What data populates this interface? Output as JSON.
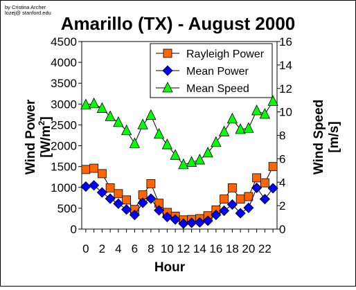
{
  "credit": [
    "by Cristina Archer",
    "lozej@ stanford.edu"
  ],
  "chart_data": {
    "type": "line",
    "title": "Amarillo (TX) - August 2000",
    "xlabel": "Hour",
    "ylabel_left": [
      "Wind Power",
      "[W/m",
      "2",
      "]"
    ],
    "ylabel_right": [
      "Wind Speed",
      "[m/s]"
    ],
    "xlim": [
      -0.5,
      23.5
    ],
    "ylim_left": [
      0,
      4500
    ],
    "ylim_right": [
      0,
      16
    ],
    "x_ticks": [
      "0",
      "2",
      "4",
      "6",
      "8",
      "10",
      "12",
      "14",
      "16",
      "18",
      "20",
      "22"
    ],
    "y_ticks_left": [
      "0",
      "500",
      "1000",
      "1500",
      "2000",
      "2500",
      "3000",
      "3500",
      "4000",
      "4500"
    ],
    "y_ticks_right": [
      "0",
      "2",
      "4",
      "6",
      "8",
      "10",
      "12",
      "14",
      "16"
    ],
    "grid": false,
    "legend_position": "top-right",
    "x": [
      0,
      1,
      2,
      3,
      4,
      5,
      6,
      7,
      8,
      9,
      10,
      11,
      12,
      13,
      14,
      15,
      16,
      17,
      18,
      19,
      20,
      21,
      22,
      23
    ],
    "series": [
      {
        "name": "Rayleigh Power",
        "axis": "left",
        "marker": "square",
        "color": "#ff6600",
        "values": [
          1430,
          1460,
          1330,
          990,
          850,
          700,
          470,
          820,
          1090,
          620,
          400,
          310,
          220,
          230,
          250,
          320,
          460,
          720,
          990,
          720,
          780,
          1230,
          1110,
          1500
        ]
      },
      {
        "name": "Mean Power",
        "axis": "left",
        "marker": "diamond",
        "color": "#0000ff",
        "values": [
          1020,
          1050,
          880,
          730,
          610,
          470,
          340,
          630,
          730,
          450,
          290,
          230,
          130,
          150,
          160,
          200,
          340,
          440,
          590,
          380,
          510,
          990,
          720,
          980
        ]
      },
      {
        "name": "Mean Speed",
        "axis": "right",
        "marker": "triangle",
        "color": "#00ff00",
        "values": [
          10.6,
          10.7,
          10.3,
          9.6,
          9.1,
          8.4,
          7.3,
          8.9,
          9.7,
          8.1,
          7.2,
          6.3,
          5.5,
          5.7,
          5.9,
          6.5,
          7.4,
          8.3,
          9.4,
          8.5,
          8.6,
          10.1,
          9.8,
          10.9
        ]
      }
    ]
  }
}
